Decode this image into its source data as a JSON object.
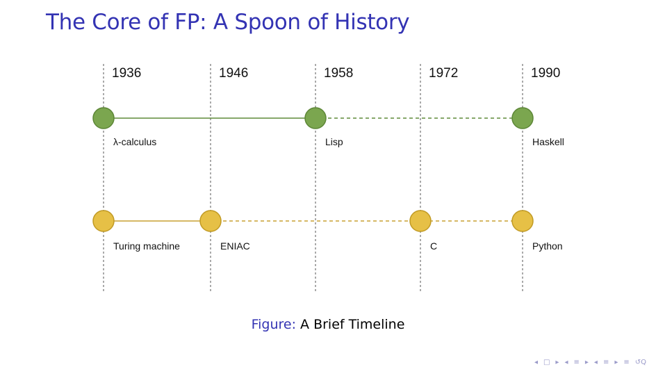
{
  "slide": {
    "title": "The Core of FP: A Spoon of History"
  },
  "figure": {
    "caption_prefix": "Figure:",
    "caption_text": "A Brief Timeline"
  },
  "colors": {
    "fp_fill": "#7ba64f",
    "fp_stroke": "#5c8636",
    "fp_line": "#5e8a38",
    "imp_fill": "#e6c046",
    "imp_stroke": "#c19a23",
    "imp_line": "#c9a032",
    "title": "#3333b3",
    "nav": "#9a9ac9"
  },
  "timeline": {
    "years": [
      "1936",
      "1946",
      "1958",
      "1972",
      "1990"
    ],
    "tracks": [
      {
        "id": "fp",
        "events": [
          {
            "year": "1936",
            "label": "λ-calculus"
          },
          {
            "year": "1958",
            "label": "Lisp"
          },
          {
            "year": "1990",
            "label": "Haskell"
          }
        ],
        "segments": [
          {
            "from": "1936",
            "to": "1958",
            "style": "solid"
          },
          {
            "from": "1958",
            "to": "1990",
            "style": "dashed"
          }
        ]
      },
      {
        "id": "imperative",
        "events": [
          {
            "year": "1936",
            "label": "Turing machine"
          },
          {
            "year": "1946",
            "label": "ENIAC"
          },
          {
            "year": "1972",
            "label": "C"
          },
          {
            "year": "1990",
            "label": "Python"
          }
        ],
        "segments": [
          {
            "from": "1936",
            "to": "1946",
            "style": "solid"
          },
          {
            "from": "1946",
            "to": "1990",
            "style": "dashed"
          }
        ]
      }
    ]
  },
  "nav_icons": [
    "nav-prev-frame-icon",
    "nav-frame-icon",
    "nav-next-frame-icon",
    "nav-prev-section-icon",
    "nav-section-icon",
    "nav-next-section-icon",
    "nav-prev-subsection-icon",
    "nav-subsection-icon",
    "nav-next-subsection-icon",
    "nav-align-icon",
    "nav-search-icon"
  ]
}
